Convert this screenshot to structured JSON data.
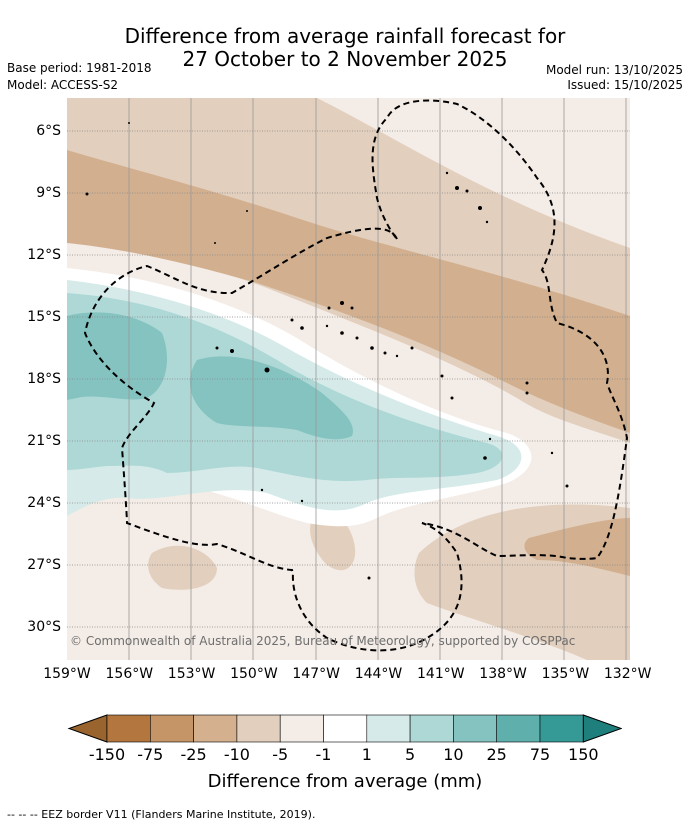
{
  "title_line1": "Difference from average rainfall forecast for",
  "title_line2": "27 October to 2 November 2025",
  "base_period": "Base period: 1981-2018",
  "model": "Model: ACCESS-S2",
  "model_run": "Model run: 13/10/2025",
  "issued": "Issued: 15/10/2025",
  "copyright": "© Commonwealth of Australia 2025, Bureau of Meteorology, supported by COSPPac",
  "lat_labels": [
    "6°S",
    "9°S",
    "12°S",
    "15°S",
    "18°S",
    "21°S",
    "24°S",
    "27°S",
    "30°S"
  ],
  "lon_labels": [
    "159°W",
    "156°W",
    "153°W",
    "150°W",
    "147°W",
    "144°W",
    "141°W",
    "138°W",
    "135°W",
    "132°W"
  ],
  "colorbar": {
    "title": "Difference from average (mm)",
    "ticks": [
      "-150",
      "-75",
      "-25",
      "-10",
      "-5",
      "-1",
      "1",
      "5",
      "10",
      "25",
      "75",
      "150"
    ],
    "colors": [
      "#9a642f",
      "#b2763e",
      "#c59567",
      "#d4b08f",
      "#e2cfbd",
      "#f4ece6",
      "#ffffff",
      "#d6ebe9",
      "#aed8d6",
      "#84c3c0",
      "#5fb0ad",
      "#359996",
      "#1f7f7c"
    ]
  },
  "legend_text": "--  --  -- EEZ border V11 (Flanders Marine Institute, 2019)."
}
